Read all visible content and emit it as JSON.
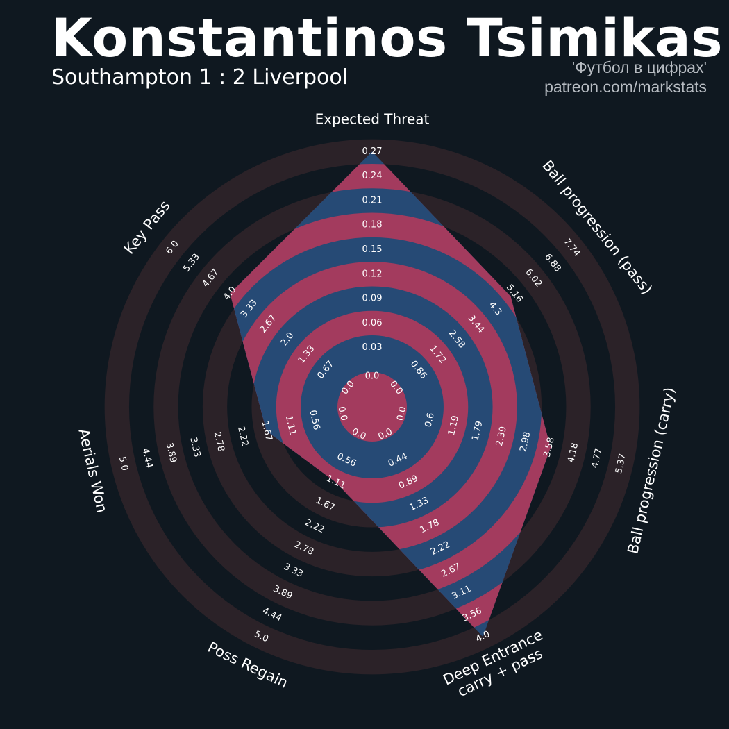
{
  "header": {
    "title": "Konstantinos Tsimikas",
    "subtitle": "Southampton 1 : 2 Liverpool",
    "credit_line1": "'Футбол в цифрах'",
    "credit_line2": "patreon.com/markstats"
  },
  "colors": {
    "background": "#0f1820",
    "ring_dark": "#0f1820",
    "ring_light": "#2b2228",
    "fill_blue": "#264a75",
    "fill_pink": "#a33b5e",
    "text": "#ffffff",
    "credit": "#b7bcc2"
  },
  "chart_data": {
    "type": "radar",
    "categories": [
      "Expected Threat",
      "Ball progression (pass)",
      "Ball progression (carry)",
      "Deep Entrance\ncarry + pass",
      "Poss Regain",
      "Aerials Won",
      "Key Pass"
    ],
    "ranges": [
      [
        0,
        0.27
      ],
      [
        0,
        7.74
      ],
      [
        0,
        5.37
      ],
      [
        0,
        4.0
      ],
      [
        0,
        5.0
      ],
      [
        0,
        5.0
      ],
      [
        0,
        6.0
      ]
    ],
    "tick_labels": [
      [
        "0.0",
        "0.03",
        "0.06",
        "0.09",
        "0.12",
        "0.15",
        "0.18",
        "0.21",
        "0.24",
        "0.27"
      ],
      [
        "0.0",
        "0.86",
        "1.72",
        "2.58",
        "3.44",
        "4.3",
        "5.16",
        "6.02",
        "6.88",
        "7.74"
      ],
      [
        "0.0",
        "0.6",
        "1.19",
        "1.79",
        "2.39",
        "2.98",
        "3.58",
        "4.18",
        "4.77",
        "5.37"
      ],
      [
        "0.0",
        "0.44",
        "0.89",
        "1.33",
        "1.78",
        "2.22",
        "2.67",
        "3.11",
        "3.56",
        "4.0"
      ],
      [
        "0.0",
        "0.56",
        "1.11",
        "1.67",
        "2.22",
        "2.78",
        "3.33",
        "3.89",
        "4.44",
        "5.0"
      ],
      [
        "0.0",
        "0.56",
        "1.11",
        "1.67",
        "2.22",
        "2.78",
        "3.33",
        "3.89",
        "4.44",
        "5.0"
      ],
      [
        "0.0",
        "0.67",
        "1.33",
        "2.0",
        "2.67",
        "3.33",
        "4.0",
        "4.67",
        "5.33",
        "6.0"
      ]
    ],
    "series": [
      {
        "values": [
          0.27,
          5.0,
          3.61,
          4.0,
          1.11,
          1.67,
          4.0
        ]
      }
    ]
  }
}
